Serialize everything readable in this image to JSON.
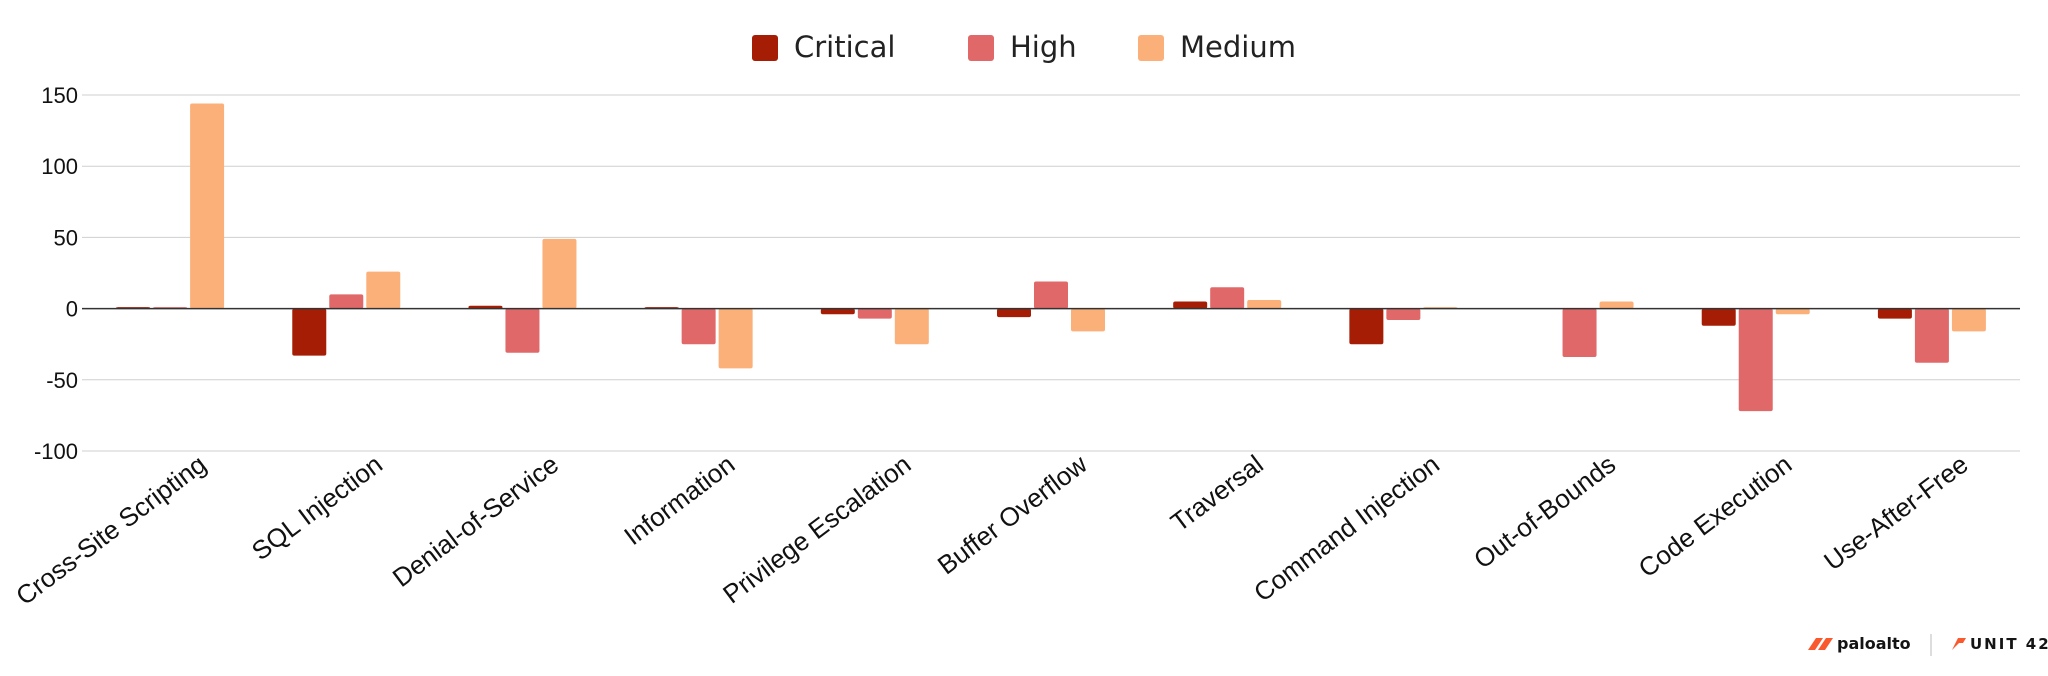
{
  "chart_data": {
    "type": "bar",
    "categories": [
      "Cross-Site Scripting",
      "SQL Injection",
      "Denial-of-Service",
      "Information",
      "Privilege Escalation",
      "Buffer Overflow",
      "Traversal",
      "Command Injection",
      "Out-of-Bounds",
      "Code Execution",
      "Use-After-Free"
    ],
    "series": [
      {
        "name": "Critical",
        "color": "#a51d05",
        "values": [
          1,
          -33,
          2,
          1,
          -4,
          -6,
          5,
          -25,
          0,
          -12,
          -7
        ]
      },
      {
        "name": "High",
        "color": "#e06868",
        "values": [
          1,
          10,
          -31,
          -25,
          -7,
          19,
          15,
          -8,
          -34,
          -72,
          -38
        ]
      },
      {
        "name": "Medium",
        "color": "#fbb07a",
        "values": [
          144,
          26,
          49,
          -42,
          -25,
          -16,
          6,
          1,
          5,
          -4,
          -16
        ]
      }
    ],
    "yticks": [
      150,
      100,
      50,
      0,
      -50,
      -100
    ],
    "ylim": [
      -100,
      150
    ],
    "title": "",
    "xlabel": "",
    "ylabel": "",
    "grid": true,
    "legend_position": "top-center"
  },
  "branding": {
    "logo_primary": "paloalto",
    "logo_secondary": "UNIT 42"
  }
}
